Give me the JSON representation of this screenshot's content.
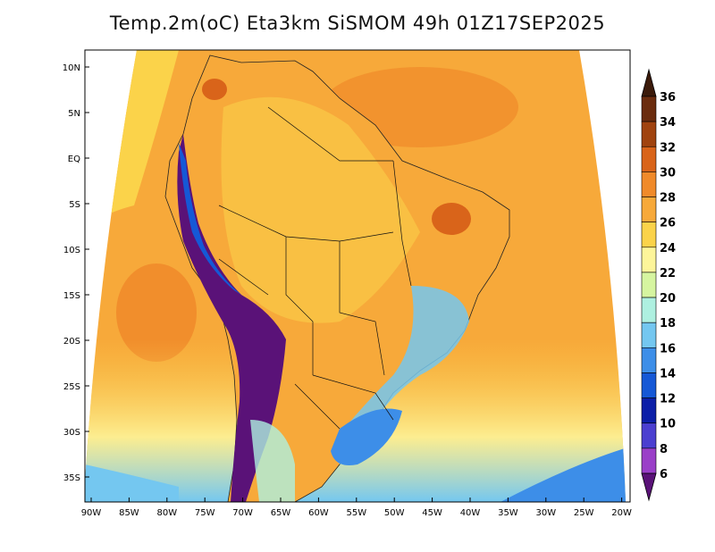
{
  "title": "Temp.2m(oC) Eta3km SiSMOM 49h 01Z17SEP2025",
  "axes": {
    "lat_labels": [
      "10N",
      "5N",
      "EQ",
      "5S",
      "10S",
      "15S",
      "20S",
      "25S",
      "30S",
      "35S"
    ],
    "lon_labels": [
      "90W",
      "85W",
      "80W",
      "75W",
      "70W",
      "65W",
      "60W",
      "55W",
      "50W",
      "45W",
      "40W",
      "35W",
      "30W",
      "25W",
      "20W"
    ]
  },
  "colorbar": {
    "labels": [
      "36",
      "34",
      "32",
      "30",
      "28",
      "26",
      "24",
      "22",
      "20",
      "18",
      "16",
      "14",
      "12",
      "10",
      "8",
      "6"
    ],
    "colors": [
      "#3b1a0a",
      "#6b2c0e",
      "#a0430f",
      "#d9641a",
      "#f08a2a",
      "#f7a93a",
      "#fbd34a",
      "#fdf59a",
      "#d6f5a0",
      "#aef0e0",
      "#74c7f0",
      "#3d8ee8",
      "#1558d6",
      "#0c1fa8",
      "#4b3fd0",
      "#9a3fc8",
      "#5a1278"
    ]
  },
  "colors": {
    "ocean_main": "#f7a93a",
    "ocean_cool": "#fbd34a",
    "land_warm": "#f08a2a",
    "land_base": "#f7a93a",
    "andes": "#5a1278",
    "south_cool": "#74c7f0"
  }
}
